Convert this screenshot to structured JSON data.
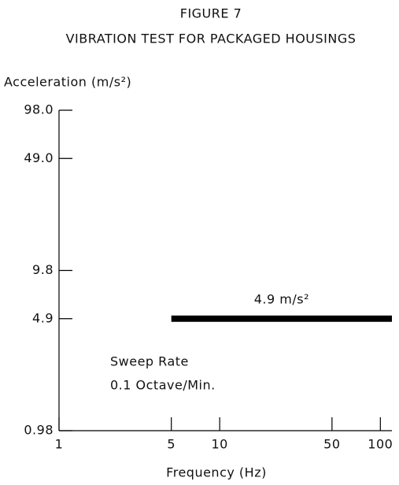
{
  "chart_data": {
    "type": "line",
    "title": "FIGURE 7",
    "subtitle": "VIBRATION TEST FOR PACKAGED HOUSINGS",
    "y_label": "Acceleration (m/s²)",
    "x_label": "Frequency (Hz)",
    "annotations": [
      "Sweep Rate",
      "0.1 Octave/Min."
    ],
    "x": [
      5,
      118
    ],
    "series": [
      {
        "label": "4.9 m/s²",
        "color": "#000000",
        "values": [
          4.9,
          4.9
        ]
      }
    ],
    "xlim": [
      1,
      118
    ],
    "xticks": [
      1,
      5,
      10,
      50,
      100
    ],
    "ylim": [
      0.98,
      98
    ],
    "yticks": [
      0.98,
      4.9,
      9.8,
      {
        "value": 49,
        "label": "49.0"
      },
      {
        "value": 98,
        "label": "98.0"
      }
    ],
    "xscale": "log",
    "yscale": "log",
    "grid": false
  }
}
